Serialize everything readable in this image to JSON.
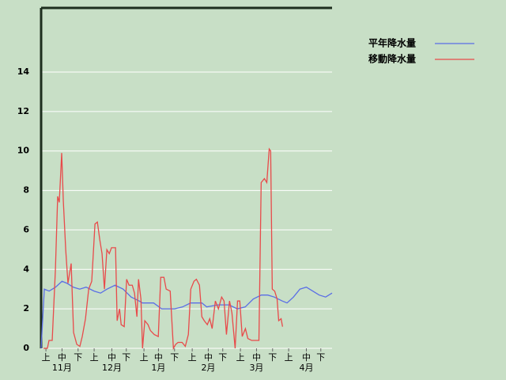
{
  "chart_data": {
    "type": "line",
    "xlim": [
      0,
      181
    ],
    "ylim": [
      0,
      17.25
    ],
    "yticks": [
      0,
      2,
      4,
      6,
      8,
      10,
      12,
      14
    ],
    "xticks": [
      {
        "value": 3,
        "label": "上"
      },
      {
        "value": 13,
        "label": "中"
      },
      {
        "value": 23,
        "label": "下"
      },
      {
        "value": 33,
        "label": "上"
      },
      {
        "value": 44,
        "label": "中"
      },
      {
        "value": 53,
        "label": "下"
      },
      {
        "value": 64,
        "label": "上"
      },
      {
        "value": 73,
        "label": "中"
      },
      {
        "value": 83,
        "label": "下"
      },
      {
        "value": 94,
        "label": "上"
      },
      {
        "value": 104,
        "label": "中"
      },
      {
        "value": 113,
        "label": "下"
      },
      {
        "value": 124,
        "label": "上"
      },
      {
        "value": 134,
        "label": "中"
      },
      {
        "value": 144,
        "label": "下"
      },
      {
        "value": 154,
        "label": "上"
      },
      {
        "value": 165,
        "label": "中"
      },
      {
        "value": 174,
        "label": "下"
      }
    ],
    "month_ticks": [
      {
        "value": 13,
        "label": "11月"
      },
      {
        "value": 44,
        "label": "12月"
      },
      {
        "value": 73,
        "label": "1月"
      },
      {
        "value": 104,
        "label": "2月"
      },
      {
        "value": 134,
        "label": "3月"
      },
      {
        "value": 165,
        "label": "4月"
      }
    ],
    "grid": true,
    "series": [
      {
        "name": "平年降水量",
        "color": "#5a6ee6",
        "x": [
          0,
          2,
          5,
          9,
          13,
          16,
          20,
          24,
          28,
          33,
          37,
          41,
          46,
          51,
          56,
          61,
          63,
          70,
          75,
          83,
          88,
          93,
          100,
          103,
          110,
          117,
          122,
          127,
          132,
          137,
          141,
          145,
          150,
          153,
          157,
          161,
          165,
          169,
          173,
          177,
          181
        ],
        "values": [
          0,
          3.0,
          2.9,
          3.1,
          3.4,
          3.3,
          3.1,
          3.0,
          3.1,
          2.9,
          2.8,
          3.0,
          3.2,
          3.0,
          2.6,
          2.4,
          2.3,
          2.3,
          2.0,
          2.0,
          2.1,
          2.3,
          2.3,
          2.1,
          2.2,
          2.2,
          2.0,
          2.1,
          2.5,
          2.7,
          2.7,
          2.6,
          2.4,
          2.3,
          2.6,
          3.0,
          3.1,
          2.9,
          2.7,
          2.6,
          2.8
        ]
      },
      {
        "name": "移動降水量",
        "color": "#e84a4a",
        "x": [
          1.5,
          3.9,
          4.9,
          6.9,
          8.9,
          10.3,
          11.3,
          12.8,
          13.8,
          15.3,
          16.7,
          18.7,
          20.2,
          22.2,
          24.1,
          25.6,
          27.6,
          29.6,
          31.5,
          33.5,
          35.0,
          36.5,
          37.9,
          39.4,
          40.9,
          42.4,
          43.8,
          46.3,
          47.3,
          48.8,
          49.8,
          51.7,
          53.2,
          54.7,
          56.7,
          58.1,
          59.6,
          60.6,
          62.1,
          63.1,
          64.5,
          66.5,
          68.0,
          70.4,
          72.9,
          74.4,
          76.4,
          77.8,
          80.3,
          82.3,
          83.7,
          85.2,
          87.7,
          89.7,
          91.6,
          93.1,
          95.1,
          96.6,
          98.5,
          100.0,
          101.5,
          103.4,
          104.9,
          106.4,
          108.4,
          110.3,
          112.3,
          113.8,
          115.3,
          117.2,
          118.7,
          120.7,
          122.2,
          123.6,
          125.1,
          127.1,
          128.6,
          131.0,
          133.5,
          135.5,
          136.9,
          138.9,
          140.4,
          141.9,
          142.8,
          143.8,
          145.3,
          146.8,
          147.8,
          149.3,
          150.2
        ],
        "values": [
          0,
          0,
          0.4,
          0.4,
          4,
          7.7,
          7.4,
          9.9,
          7.5,
          5,
          3.3,
          4.3,
          0.8,
          0.2,
          0.1,
          0.6,
          1.5,
          3.0,
          3.4,
          6.3,
          6.4,
          5.5,
          4.8,
          3.0,
          5.0,
          4.8,
          5.1,
          5.1,
          1.4,
          2.0,
          1.2,
          1.1,
          3.5,
          3.2,
          3.2,
          2.8,
          1.6,
          3.5,
          2.5,
          0.0,
          1.4,
          1.2,
          0.9,
          0.7,
          0.6,
          3.6,
          3.6,
          3.0,
          2.9,
          0.0,
          0.2,
          0.3,
          0.3,
          0.1,
          0.7,
          3.0,
          3.4,
          3.5,
          3.2,
          1.6,
          1.4,
          1.2,
          1.5,
          1.0,
          2.4,
          2.0,
          2.6,
          2.4,
          0.7,
          2.4,
          1.8,
          0.0,
          2.4,
          2.4,
          0.6,
          1.0,
          0.5,
          0.4,
          0.4,
          0.4,
          8.4,
          8.6,
          8.4,
          10.1,
          10.0,
          3.0,
          2.9,
          2.5,
          1.4,
          1.5,
          1.1
        ]
      }
    ]
  }
}
